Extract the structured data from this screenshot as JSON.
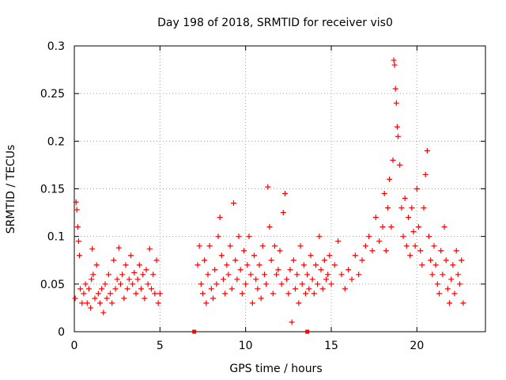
{
  "chart_data": {
    "type": "scatter",
    "title": "Day 198 of 2018, SRMTID for receiver vis0",
    "xlabel": "GPS time / hours",
    "ylabel": "SRMTID / TECUs",
    "xlim": [
      0,
      24
    ],
    "ylim": [
      0,
      0.3
    ],
    "xticks": [
      0,
      5,
      10,
      15,
      20
    ],
    "yticks": [
      0,
      0.05,
      0.1,
      0.15,
      0.2,
      0.25,
      0.3
    ],
    "xtick_labels": [
      "0",
      "5",
      "10",
      "15",
      "20"
    ],
    "ytick_labels": [
      "0",
      "0.05",
      "0.1",
      "0.15",
      "0.2",
      "0.25",
      "0.3"
    ],
    "grid": true,
    "marker": "plus",
    "color": "#ff0000",
    "series": [
      {
        "name": "vis0",
        "points": [
          [
            0.05,
            0.035
          ],
          [
            0.1,
            0.136
          ],
          [
            0.15,
            0.128
          ],
          [
            0.2,
            0.11
          ],
          [
            0.25,
            0.095
          ],
          [
            0.3,
            0.08
          ],
          [
            0.35,
            0.045
          ],
          [
            0.45,
            0.03
          ],
          [
            0.55,
            0.04
          ],
          [
            0.65,
            0.05
          ],
          [
            0.75,
            0.03
          ],
          [
            0.85,
            0.045
          ],
          [
            0.95,
            0.025
          ],
          [
            1.0,
            0.055
          ],
          [
            1.05,
            0.087
          ],
          [
            1.1,
            0.06
          ],
          [
            1.2,
            0.035
          ],
          [
            1.3,
            0.07
          ],
          [
            1.4,
            0.04
          ],
          [
            1.5,
            0.03
          ],
          [
            1.6,
            0.045
          ],
          [
            1.7,
            0.02
          ],
          [
            1.8,
            0.05
          ],
          [
            1.9,
            0.035
          ],
          [
            2.0,
            0.06
          ],
          [
            2.1,
            0.04
          ],
          [
            2.2,
            0.03
          ],
          [
            2.3,
            0.075
          ],
          [
            2.4,
            0.045
          ],
          [
            2.5,
            0.055
          ],
          [
            2.6,
            0.088
          ],
          [
            2.7,
            0.05
          ],
          [
            2.8,
            0.06
          ],
          [
            2.9,
            0.035
          ],
          [
            3.0,
            0.07
          ],
          [
            3.1,
            0.045
          ],
          [
            3.2,
            0.055
          ],
          [
            3.3,
            0.08
          ],
          [
            3.4,
            0.05
          ],
          [
            3.5,
            0.062
          ],
          [
            3.6,
            0.04
          ],
          [
            3.7,
            0.055
          ],
          [
            3.8,
            0.07
          ],
          [
            3.9,
            0.045
          ],
          [
            4.0,
            0.06
          ],
          [
            4.1,
            0.035
          ],
          [
            4.2,
            0.065
          ],
          [
            4.3,
            0.05
          ],
          [
            4.4,
            0.087
          ],
          [
            4.5,
            0.045
          ],
          [
            4.6,
            0.06
          ],
          [
            4.7,
            0.04
          ],
          [
            4.8,
            0.075
          ],
          [
            4.9,
            0.03
          ],
          [
            5.0,
            0.04
          ],
          [
            7.2,
            0.07
          ],
          [
            7.3,
            0.09
          ],
          [
            7.4,
            0.05
          ],
          [
            7.5,
            0.04
          ],
          [
            7.6,
            0.075
          ],
          [
            7.7,
            0.03
          ],
          [
            7.8,
            0.06
          ],
          [
            7.9,
            0.09
          ],
          [
            8.0,
            0.045
          ],
          [
            8.1,
            0.035
          ],
          [
            8.2,
            0.065
          ],
          [
            8.3,
            0.05
          ],
          [
            8.4,
            0.1
          ],
          [
            8.5,
            0.12
          ],
          [
            8.6,
            0.08
          ],
          [
            8.7,
            0.055
          ],
          [
            8.8,
            0.04
          ],
          [
            8.9,
            0.07
          ],
          [
            9.0,
            0.06
          ],
          [
            9.1,
            0.09
          ],
          [
            9.2,
            0.045
          ],
          [
            9.3,
            0.135
          ],
          [
            9.4,
            0.075
          ],
          [
            9.5,
            0.055
          ],
          [
            9.6,
            0.1
          ],
          [
            9.7,
            0.065
          ],
          [
            9.8,
            0.04
          ],
          [
            9.9,
            0.085
          ],
          [
            10.0,
            0.05
          ],
          [
            10.1,
            0.07
          ],
          [
            10.2,
            0.1
          ],
          [
            10.3,
            0.06
          ],
          [
            10.4,
            0.03
          ],
          [
            10.5,
            0.08
          ],
          [
            10.6,
            0.055
          ],
          [
            10.7,
            0.045
          ],
          [
            10.8,
            0.07
          ],
          [
            10.9,
            0.035
          ],
          [
            11.0,
            0.09
          ],
          [
            11.1,
            0.06
          ],
          [
            11.2,
            0.05
          ],
          [
            11.3,
            0.152
          ],
          [
            11.4,
            0.11
          ],
          [
            11.5,
            0.075
          ],
          [
            11.6,
            0.04
          ],
          [
            11.7,
            0.09
          ],
          [
            11.8,
            0.06
          ],
          [
            11.9,
            0.065
          ],
          [
            12.0,
            0.085
          ],
          [
            12.1,
            0.05
          ],
          [
            12.2,
            0.125
          ],
          [
            12.3,
            0.145
          ],
          [
            12.4,
            0.055
          ],
          [
            12.5,
            0.04
          ],
          [
            12.6,
            0.065
          ],
          [
            12.7,
            0.01
          ],
          [
            12.8,
            0.075
          ],
          [
            12.9,
            0.045
          ],
          [
            13.0,
            0.06
          ],
          [
            13.1,
            0.03
          ],
          [
            13.2,
            0.09
          ],
          [
            13.3,
            0.05
          ],
          [
            13.4,
            0.07
          ],
          [
            13.5,
            0.04
          ],
          [
            13.6,
            0.06
          ],
          [
            13.7,
            0.045
          ],
          [
            13.8,
            0.08
          ],
          [
            13.9,
            0.055
          ],
          [
            14.0,
            0.04
          ],
          [
            14.1,
            0.07
          ],
          [
            14.2,
            0.05
          ],
          [
            14.3,
            0.1
          ],
          [
            14.4,
            0.065
          ],
          [
            14.5,
            0.045
          ],
          [
            14.6,
            0.075
          ],
          [
            14.7,
            0.055
          ],
          [
            14.8,
            0.06
          ],
          [
            14.9,
            0.08
          ],
          [
            15.0,
            0.05
          ],
          [
            15.2,
            0.07
          ],
          [
            15.4,
            0.095
          ],
          [
            15.6,
            0.06
          ],
          [
            15.8,
            0.045
          ],
          [
            16.0,
            0.065
          ],
          [
            16.2,
            0.055
          ],
          [
            16.4,
            0.08
          ],
          [
            16.6,
            0.06
          ],
          [
            16.8,
            0.075
          ],
          [
            17.0,
            0.09
          ],
          [
            17.2,
            0.1
          ],
          [
            17.4,
            0.085
          ],
          [
            17.6,
            0.12
          ],
          [
            17.8,
            0.095
          ],
          [
            18.0,
            0.11
          ],
          [
            18.1,
            0.145
          ],
          [
            18.2,
            0.085
          ],
          [
            18.3,
            0.13
          ],
          [
            18.4,
            0.16
          ],
          [
            18.5,
            0.11
          ],
          [
            18.6,
            0.18
          ],
          [
            18.65,
            0.285
          ],
          [
            18.7,
            0.28
          ],
          [
            18.75,
            0.255
          ],
          [
            18.8,
            0.24
          ],
          [
            18.85,
            0.215
          ],
          [
            18.9,
            0.205
          ],
          [
            19.0,
            0.175
          ],
          [
            19.1,
            0.13
          ],
          [
            19.2,
            0.1
          ],
          [
            19.3,
            0.14
          ],
          [
            19.4,
            0.09
          ],
          [
            19.5,
            0.12
          ],
          [
            19.6,
            0.08
          ],
          [
            19.7,
            0.13
          ],
          [
            19.8,
            0.105
          ],
          [
            19.9,
            0.09
          ],
          [
            20.0,
            0.15
          ],
          [
            20.1,
            0.11
          ],
          [
            20.2,
            0.085
          ],
          [
            20.3,
            0.07
          ],
          [
            20.4,
            0.13
          ],
          [
            20.5,
            0.165
          ],
          [
            20.6,
            0.19
          ],
          [
            20.7,
            0.1
          ],
          [
            20.8,
            0.075
          ],
          [
            20.9,
            0.06
          ],
          [
            21.0,
            0.09
          ],
          [
            21.1,
            0.07
          ],
          [
            21.2,
            0.05
          ],
          [
            21.3,
            0.04
          ],
          [
            21.4,
            0.085
          ],
          [
            21.5,
            0.06
          ],
          [
            21.6,
            0.11
          ],
          [
            21.7,
            0.075
          ],
          [
            21.8,
            0.045
          ],
          [
            21.9,
            0.03
          ],
          [
            22.0,
            0.055
          ],
          [
            22.1,
            0.07
          ],
          [
            22.2,
            0.04
          ],
          [
            22.3,
            0.085
          ],
          [
            22.4,
            0.06
          ],
          [
            22.5,
            0.05
          ],
          [
            22.6,
            0.075
          ],
          [
            22.7,
            0.03
          ]
        ]
      }
    ],
    "gap_markers": [
      {
        "x": 7.0,
        "y": 0
      },
      {
        "x": 13.6,
        "y": 0
      }
    ]
  }
}
